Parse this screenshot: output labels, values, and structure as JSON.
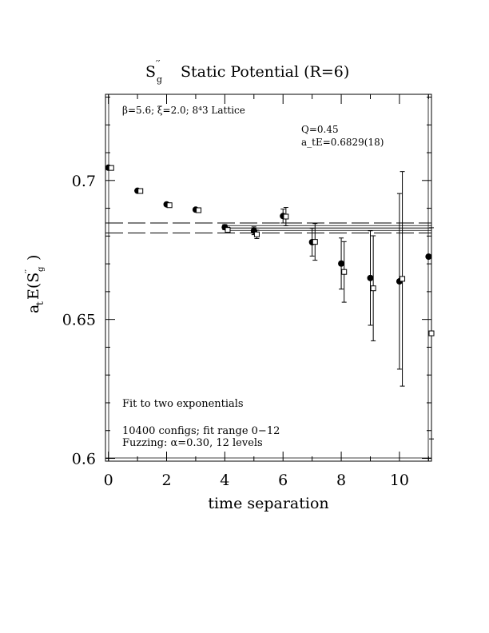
{
  "chart_data": {
    "type": "scatter",
    "title": {
      "main": "S",
      "superscript": "′′",
      "subscript": "g",
      "rest": "Static Potential (R=6)"
    },
    "xlabel": "time separation",
    "ylabel": {
      "text": "a",
      "t_sub": "t",
      "e_part": "E(S",
      "prime": "′′",
      "g_sub": "g",
      "close": ")"
    },
    "xlim": [
      -0.1,
      11.1
    ],
    "ylim": [
      0.599,
      0.731
    ],
    "x_ticks": [
      0,
      2,
      4,
      6,
      8,
      10
    ],
    "x_tick_labels": [
      "0",
      "2",
      "4",
      "6",
      "8",
      "10"
    ],
    "y_ticks": [
      0.6,
      0.65,
      0.7
    ],
    "y_tick_labels": [
      "0.6",
      "0.65",
      "0.7"
    ],
    "annotations": {
      "lattice": "β=5.6; ξ=2.0; 8⁴3 Lattice",
      "q_label": "Q=0.45",
      "energy_label": "a_tE=0.6829(18)",
      "fit_text": "Fit to two exponentials",
      "configs_text": "10400 configs; fit range 0−12",
      "fuzzing_text": "Fuzzing: α=0.30, 12 levels"
    },
    "fit_band": {
      "center": 0.6829,
      "upper": 0.6847,
      "lower": 0.6811,
      "x_start": 4.0
    },
    "series": [
      {
        "marker": "filled-circle",
        "x": [
          0,
          1,
          2,
          3,
          4,
          5,
          6,
          7,
          8,
          9,
          10,
          11
        ],
        "y": [
          0.7046,
          0.6963,
          0.6914,
          0.6895,
          0.6832,
          0.6819,
          0.6872,
          0.6778,
          0.6701,
          0.6649,
          0.6637,
          0.6726
        ],
        "err": [
          0.0004,
          0.0005,
          0.0005,
          0.0006,
          0.0009,
          0.0014,
          0.0025,
          0.005,
          0.0092,
          0.017,
          0.0316,
          0.0
        ]
      },
      {
        "marker": "open-square",
        "x": [
          0.1,
          1.1,
          2.1,
          3.1,
          4.1,
          5.1,
          6.1,
          7.1,
          8.1,
          9.1,
          10.1,
          11.1
        ],
        "y": [
          0.7045,
          0.6962,
          0.6911,
          0.6893,
          0.6822,
          0.6806,
          0.687,
          0.6779,
          0.6671,
          0.6612,
          0.6646,
          0.645
        ],
        "err": [
          0.0004,
          0.0005,
          0.0005,
          0.0006,
          0.001,
          0.0015,
          0.0033,
          0.0066,
          0.0109,
          0.0189,
          0.0386,
          0.038
        ]
      }
    ]
  }
}
